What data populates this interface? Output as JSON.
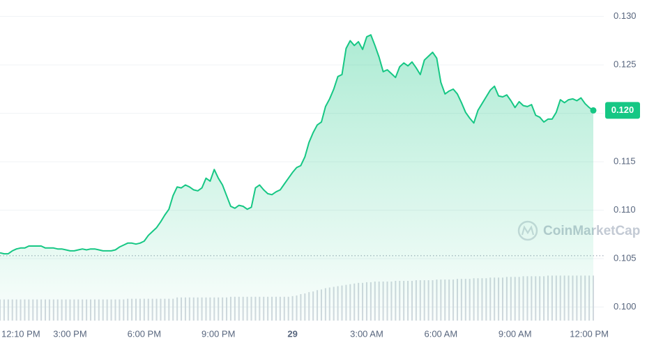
{
  "chart_data": {
    "type": "area",
    "categories": [
      "12:10 PM",
      null,
      null,
      null,
      null,
      null,
      null,
      null,
      null,
      null,
      null,
      null,
      null,
      null,
      null,
      null,
      null,
      "3:00 PM",
      null,
      null,
      null,
      null,
      null,
      null,
      null,
      null,
      null,
      null,
      null,
      null,
      null,
      null,
      null,
      null,
      null,
      "6:00 PM",
      null,
      null,
      null,
      null,
      null,
      null,
      null,
      null,
      null,
      null,
      null,
      null,
      null,
      null,
      null,
      null,
      null,
      "9:00 PM",
      null,
      null,
      null,
      null,
      null,
      null,
      null,
      null,
      null,
      null,
      null,
      null,
      null,
      null,
      null,
      null,
      null,
      "29",
      null,
      null,
      null,
      null,
      null,
      null,
      null,
      null,
      null,
      null,
      null,
      null,
      null,
      null,
      null,
      null,
      null,
      "3:00 AM",
      null,
      null,
      null,
      null,
      null,
      null,
      null,
      null,
      null,
      null,
      null,
      null,
      null,
      null,
      null,
      null,
      null,
      "6:00 AM",
      null,
      null,
      null,
      null,
      null,
      null,
      null,
      null,
      null,
      null,
      null,
      null,
      null,
      null,
      null,
      null,
      null,
      "9:00 AM",
      null,
      null,
      null,
      null,
      null,
      null,
      null,
      null,
      null,
      null,
      null,
      null,
      null,
      null,
      null,
      null,
      null,
      "12:00 PM",
      null
    ],
    "values": [
      0.1056,
      0.1055,
      0.1055,
      0.1058,
      0.106,
      0.1061,
      0.1061,
      0.1063,
      0.1063,
      0.1063,
      0.1063,
      0.1061,
      0.1061,
      0.1061,
      0.106,
      0.106,
      0.1059,
      0.1058,
      0.1058,
      0.1059,
      0.106,
      0.1059,
      0.106,
      0.106,
      0.1059,
      0.1058,
      0.1058,
      0.1058,
      0.1059,
      0.1062,
      0.1064,
      0.1066,
      0.1066,
      0.1065,
      0.1066,
      0.1068,
      0.1074,
      0.1078,
      0.1082,
      0.1088,
      0.1095,
      0.1101,
      0.1115,
      0.1124,
      0.1123,
      0.1126,
      0.1124,
      0.1121,
      0.112,
      0.1123,
      0.1133,
      0.113,
      0.1142,
      0.1133,
      0.1126,
      0.1115,
      0.1104,
      0.1102,
      0.1105,
      0.1104,
      0.1101,
      0.1103,
      0.1123,
      0.1126,
      0.1121,
      0.1117,
      0.1116,
      0.1119,
      0.1121,
      0.1127,
      0.1133,
      0.1139,
      0.1144,
      0.1146,
      0.1155,
      0.117,
      0.118,
      0.1188,
      0.1191,
      0.1207,
      0.1215,
      0.1225,
      0.1238,
      0.124,
      0.1267,
      0.1275,
      0.127,
      0.1274,
      0.1266,
      0.1279,
      0.1281,
      0.127,
      0.1258,
      0.1243,
      0.1245,
      0.1241,
      0.1237,
      0.1248,
      0.1252,
      0.1249,
      0.1253,
      0.1247,
      0.124,
      0.1255,
      0.1259,
      0.1263,
      0.1257,
      0.1232,
      0.122,
      0.1223,
      0.1225,
      0.122,
      0.1211,
      0.1201,
      0.1195,
      0.119,
      0.1203,
      0.121,
      0.1217,
      0.1224,
      0.1228,
      0.1218,
      0.1217,
      0.1219,
      0.1213,
      0.1206,
      0.1212,
      0.1208,
      0.1207,
      0.1209,
      0.1198,
      0.1196,
      0.1191,
      0.1194,
      0.1194,
      0.1201,
      0.1214,
      0.1211,
      0.1214,
      0.1215,
      0.1213,
      0.1216,
      0.121,
      0.1206,
      0.1203
    ],
    "color": "#16c784",
    "ylim": [
      0.0986,
      0.1317
    ],
    "yticks": [
      {
        "value": 0.1,
        "label": "0.100"
      },
      {
        "value": 0.105,
        "label": "0.105"
      },
      {
        "value": 0.11,
        "label": "0.110"
      },
      {
        "value": 0.115,
        "label": "0.115"
      },
      {
        "value": 0.12,
        "label": "0.120"
      },
      {
        "value": 0.125,
        "label": "0.125"
      },
      {
        "value": 0.13,
        "label": "0.130"
      }
    ],
    "grid": true,
    "reference": 0.1053,
    "last_label": "0.120",
    "volume": [
      32,
      32,
      32,
      32,
      32,
      32,
      32,
      32,
      32,
      32,
      32,
      32,
      32,
      32,
      32,
      32,
      32,
      32,
      32,
      32,
      32,
      32,
      32,
      32,
      32,
      32,
      32,
      32,
      32,
      32,
      32,
      33,
      33,
      33,
      33,
      33,
      33,
      33,
      33,
      33,
      33,
      33,
      33,
      35,
      35,
      35,
      35,
      35,
      35,
      35,
      35,
      35,
      35,
      35,
      35,
      35,
      36,
      36,
      36,
      36,
      36,
      36,
      36,
      36,
      36,
      36,
      36,
      36,
      36,
      36,
      36,
      37,
      38,
      40,
      41,
      43,
      44,
      46,
      47,
      49,
      50,
      51,
      52,
      53,
      54,
      55,
      56,
      57,
      57,
      58,
      58,
      59,
      59,
      59,
      59,
      59,
      60,
      60,
      60,
      60,
      60,
      61,
      61,
      61,
      61,
      61,
      62,
      62,
      62,
      62,
      62,
      63,
      63,
      63,
      63,
      64,
      64,
      64,
      64,
      65,
      65,
      65,
      65,
      66,
      66,
      66,
      66,
      67,
      67,
      67,
      67,
      67,
      67,
      68,
      68,
      68,
      68,
      68,
      68,
      68,
      68,
      68,
      68,
      68,
      68
    ],
    "volume_lim": [
      0,
      100
    ],
    "volume_color": "#d3d8df",
    "watermark": "CoinMarketCap"
  }
}
